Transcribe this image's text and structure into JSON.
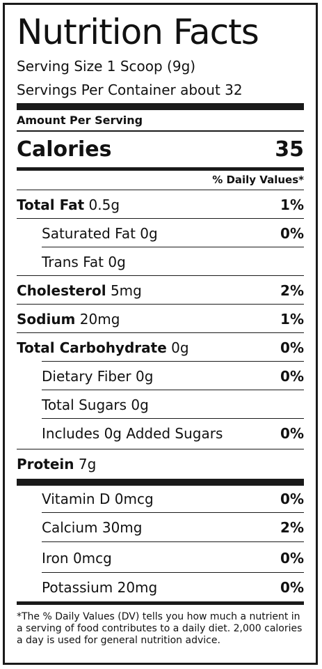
{
  "title": "Nutrition Facts",
  "serving_size": "Serving Size 1 Scoop (9g)",
  "servings_per_container": "Servings Per Container about 32",
  "amount_per_serving": "Amount Per Serving",
  "calories": {
    "label": "Calories",
    "value": "35"
  },
  "daily_values_header": "% Daily Values*",
  "nutrients": [
    {
      "name": "Total Fat",
      "amount": "0.5g",
      "dv": "1%"
    },
    {
      "name": "Saturated Fat",
      "amount": "0g",
      "dv": "0%"
    },
    {
      "name": "Trans Fat",
      "amount": "0g",
      "dv": ""
    },
    {
      "name": "Cholesterol",
      "amount": "5mg",
      "dv": "2%"
    },
    {
      "name": "Sodium",
      "amount": "20mg",
      "dv": "1%"
    },
    {
      "name": "Total Carbohydrate",
      "amount": "0g",
      "dv": "0%"
    },
    {
      "name": "Dietary Fiber",
      "amount": "0g",
      "dv": "0%"
    },
    {
      "name": "Total Sugars",
      "amount": "0g",
      "dv": ""
    },
    {
      "name": "Includes 0g Added Sugars",
      "amount": "",
      "dv": "0%"
    },
    {
      "name": "Protein",
      "amount": "7g",
      "dv": ""
    }
  ],
  "vitamins": [
    {
      "name": "Vitamin D",
      "amount": "0mcg",
      "dv": "0%"
    },
    {
      "name": "Calcium",
      "amount": "30mg",
      "dv": "2%"
    },
    {
      "name": "Iron",
      "amount": "0mcg",
      "dv": "0%"
    },
    {
      "name": "Potassium",
      "amount": "20mg",
      "dv": "0%"
    }
  ],
  "footnote": "*The % Daily Values (DV) tells you how much a nutrient in a serving of food contributes to a daily diet. 2,000 calories a day is used for general nutrition advice."
}
